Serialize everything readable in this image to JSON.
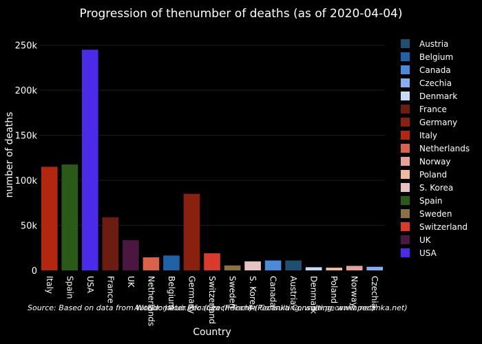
{
  "chart_data": {
    "type": "bar",
    "title": "Progression of thenumber of deaths (as of 2020-04-04)",
    "xlabel": "Country",
    "ylabel": "number of deaths",
    "source": "Source: Based on data from Worldometer.info (Czech Tech) (Pecanka Consulting, www.pecanka.net)",
    "watermark": "Author: Jakub Pecanka (Pecanka Consulting, www.pecanka.net)",
    "ylim": [
      0,
      262000
    ],
    "yticks": [
      0,
      50000,
      100000,
      150000,
      200000,
      250000
    ],
    "ytick_labels": [
      "0",
      "50k",
      "100k",
      "150k",
      "200k",
      "250k"
    ],
    "grid": true,
    "legend_position": "right",
    "categories": [
      "Italy",
      "Spain",
      "USA",
      "France",
      "UK",
      "Netherlands",
      "Belgium",
      "Germany",
      "Switzerland",
      "Sweden",
      "S. Korea",
      "Canada",
      "Austria",
      "Denmark",
      "Poland",
      "Norway",
      "Czechia"
    ],
    "values": [
      115000,
      117500,
      245000,
      59000,
      33500,
      14500,
      16500,
      85000,
      19000,
      5500,
      10000,
      11000,
      11000,
      3500,
      3000,
      5000,
      4000
    ],
    "colors": {
      "Austria": "#1f4e6e",
      "Belgium": "#2062a8",
      "Canada": "#4a8ad8",
      "Czechia": "#87aeef",
      "Denmark": "#c6dcf6",
      "France": "#6b1d12",
      "Germany": "#8a2010",
      "Italy": "#b3260f",
      "Netherlands": "#d9634a",
      "Norway": "#e6a29a",
      "Poland": "#f2bb9e",
      "S. Korea": "#e8c2c2",
      "Spain": "#2b5a18",
      "Sweden": "#8a7240",
      "Switzerland": "#d93a2e",
      "UK": "#4a1740",
      "USA": "#4b2be8"
    },
    "legend": [
      "Austria",
      "Belgium",
      "Canada",
      "Czechia",
      "Denmark",
      "France",
      "Germany",
      "Italy",
      "Netherlands",
      "Norway",
      "Poland",
      "S. Korea",
      "Spain",
      "Sweden",
      "Switzerland",
      "UK",
      "USA"
    ]
  }
}
